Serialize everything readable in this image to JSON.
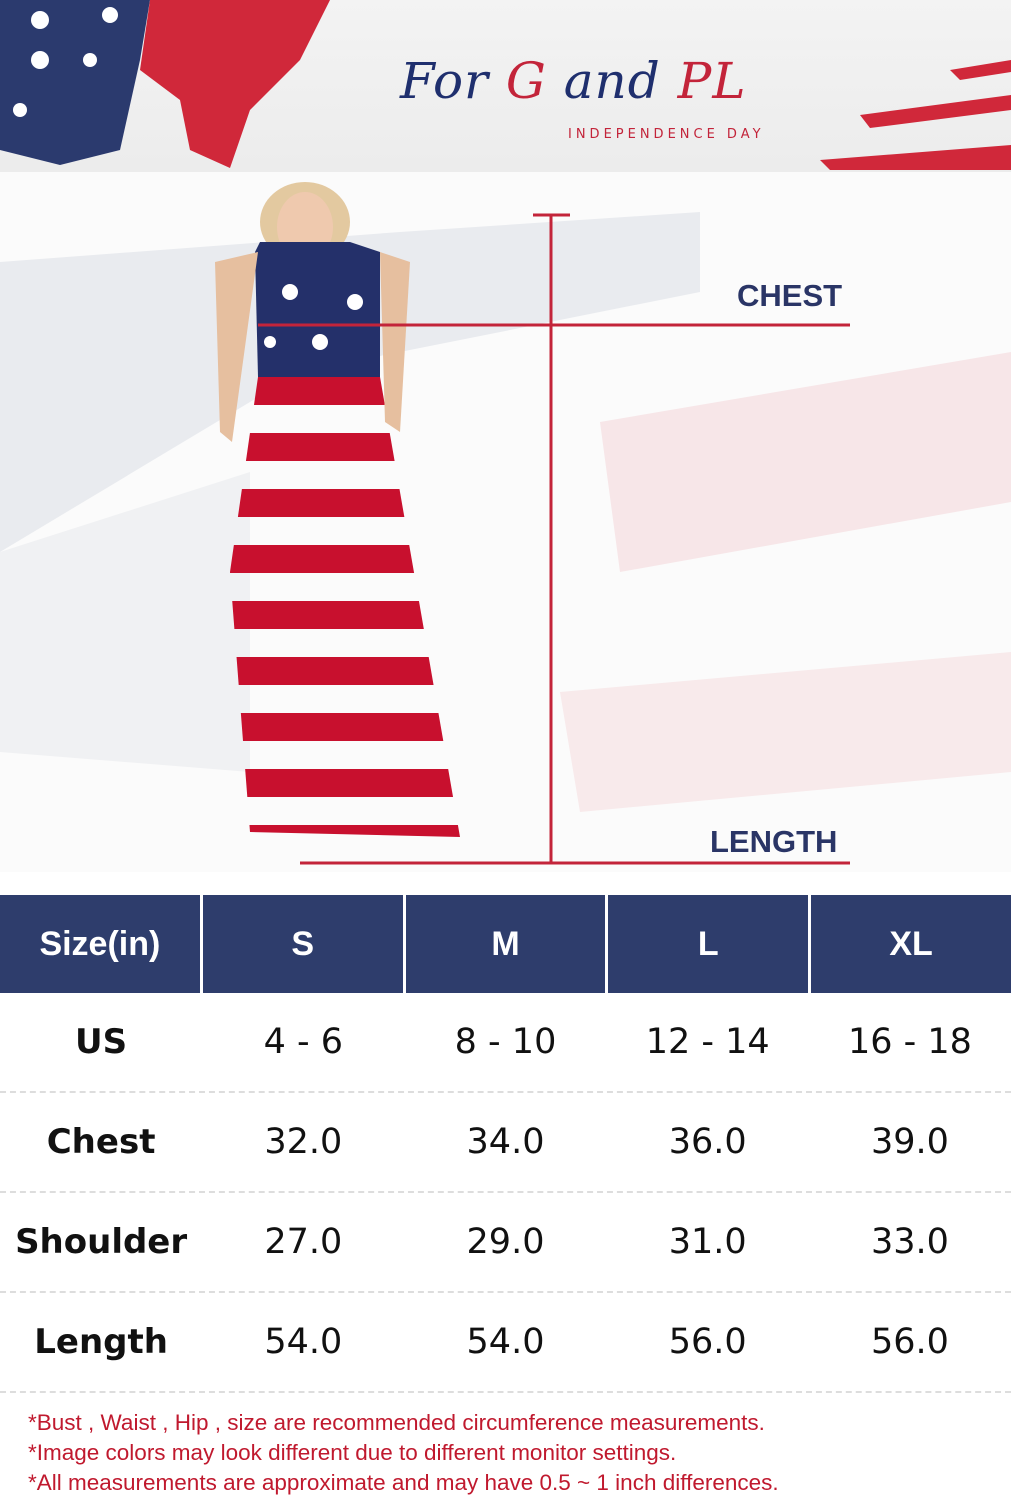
{
  "brand": {
    "logo_part1": "For",
    "logo_part2": "G",
    "logo_part3": "and",
    "logo_part4": "PL",
    "subtitle": "INDEPENDENCE DAY"
  },
  "diagram": {
    "chest_label": "CHEST",
    "length_label": "LENGTH",
    "line_color": "#c3243a"
  },
  "colors": {
    "header_bg": "#2e3d6c",
    "note_text": "#c0192e"
  },
  "table": {
    "headers": [
      "Size(in)",
      "S",
      "M",
      "L",
      "XL"
    ],
    "rows": [
      {
        "label": "US",
        "values": [
          "4 - 6",
          "8 - 10",
          "12 - 14",
          "16 - 18"
        ]
      },
      {
        "label": "Chest",
        "values": [
          "32.0",
          "34.0",
          "36.0",
          "39.0"
        ]
      },
      {
        "label": "Shoulder",
        "values": [
          "27.0",
          "29.0",
          "31.0",
          "33.0"
        ]
      },
      {
        "label": "Length",
        "values": [
          "54.0",
          "54.0",
          "56.0",
          "56.0"
        ]
      }
    ]
  },
  "notes": [
    "*Bust , Waist , Hip , size are recommended circumference measurements.",
    "*Image colors may look different due to different monitor settings.",
    "*All measurements are approximate and may have 0.5 ~ 1 inch differences."
  ]
}
